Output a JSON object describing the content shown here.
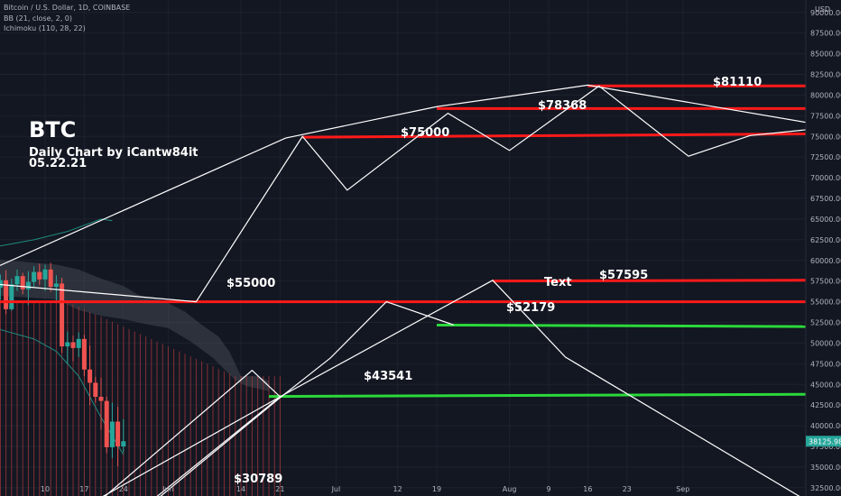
{
  "header": {
    "symbol_line": "Bitcoin / U.S. Dollar, 1D, COINBASE",
    "bb_line": "BB (21, close, 2, 0)",
    "ichimoku_line": "Ichimoku (110, 28, 22)",
    "currency": "USD"
  },
  "annotation": {
    "title": "BTC",
    "subtitle": "Daily Chart by iCantw84it",
    "date": "05.22.21"
  },
  "colors": {
    "background": "#131722",
    "grid": "#1e222d",
    "resistance": "#ff1a1a",
    "support": "#2bd93b",
    "drawing": "#ffffff",
    "candle_up": "#26a69a",
    "candle_down": "#ef5350",
    "price_tag": "#26a69a"
  },
  "chart_data": {
    "type": "line",
    "title": "Bitcoin / U.S. Dollar, 1D, COINBASE",
    "y_axis": {
      "ticks": [
        90000,
        87500,
        85000,
        82500,
        80000,
        77500,
        75000,
        72500,
        70000,
        67500,
        65000,
        62500,
        60000,
        57500,
        55000,
        52500,
        50000,
        47500,
        45000,
        42500,
        40000,
        37500,
        35000,
        32500
      ],
      "tick_labels": [
        "90000.00",
        "87500.00",
        "85000.00",
        "82500.00",
        "80000.00",
        "77500.00",
        "75000.00",
        "72500.00",
        "70000.00",
        "67500.00",
        "65000.00",
        "62500.00",
        "60000.00",
        "57500.00",
        "55000.00",
        "52500.00",
        "50000.00",
        "47500.00",
        "45000.00",
        "42500.00",
        "40000.00",
        "37500.00",
        "35000.00",
        "32500.00"
      ],
      "ylim": [
        31500,
        91500
      ]
    },
    "x_axis": {
      "tick_labels": [
        "10",
        "17",
        "24",
        "Jun",
        "14",
        "21",
        "Jul",
        "12",
        "19",
        "Aug",
        "9",
        "16",
        "23",
        "Sep"
      ],
      "tick_days": [
        0,
        7,
        14,
        22,
        35,
        42,
        52,
        63,
        70,
        83,
        90,
        97,
        104,
        114
      ],
      "xlim": [
        -10,
        140
      ]
    },
    "last_price": {
      "value": 38125.98,
      "label": "38125.98"
    },
    "candles": [
      {
        "d": -9,
        "o": 55000,
        "h": 57000,
        "l": 53800,
        "c": 56700
      },
      {
        "d": -8,
        "o": 56700,
        "h": 58300,
        "l": 55200,
        "c": 57600
      },
      {
        "d": -7,
        "o": 57600,
        "h": 58800,
        "l": 53500,
        "c": 54100
      },
      {
        "d": -6,
        "o": 54100,
        "h": 57800,
        "l": 53900,
        "c": 57100
      },
      {
        "d": -5,
        "o": 57100,
        "h": 58900,
        "l": 56300,
        "c": 58100
      },
      {
        "d": -4,
        "o": 58100,
        "h": 58500,
        "l": 55900,
        "c": 56500
      },
      {
        "d": -3,
        "o": 56500,
        "h": 58700,
        "l": 54600,
        "c": 57400
      },
      {
        "d": -2,
        "o": 57400,
        "h": 59300,
        "l": 56800,
        "c": 58600
      },
      {
        "d": -1,
        "o": 58600,
        "h": 59600,
        "l": 57000,
        "c": 57700
      },
      {
        "d": 0,
        "o": 57700,
        "h": 59500,
        "l": 56300,
        "c": 58900
      },
      {
        "d": 1,
        "o": 58900,
        "h": 59700,
        "l": 56200,
        "c": 56800
      },
      {
        "d": 2,
        "o": 56800,
        "h": 58200,
        "l": 55100,
        "c": 57200
      },
      {
        "d": 3,
        "o": 57200,
        "h": 57900,
        "l": 48800,
        "c": 49600
      },
      {
        "d": 4,
        "o": 49600,
        "h": 51400,
        "l": 47500,
        "c": 50100
      },
      {
        "d": 5,
        "o": 50100,
        "h": 50900,
        "l": 47800,
        "c": 49400
      },
      {
        "d": 6,
        "o": 49400,
        "h": 51300,
        "l": 48300,
        "c": 50500
      },
      {
        "d": 7,
        "o": 50500,
        "h": 51000,
        "l": 46000,
        "c": 46800
      },
      {
        "d": 8,
        "o": 46800,
        "h": 49700,
        "l": 42500,
        "c": 45200
      },
      {
        "d": 9,
        "o": 45200,
        "h": 45900,
        "l": 42800,
        "c": 43500
      },
      {
        "d": 10,
        "o": 43500,
        "h": 45800,
        "l": 39500,
        "c": 43000
      },
      {
        "d": 11,
        "o": 43000,
        "h": 43500,
        "l": 36700,
        "c": 37400
      },
      {
        "d": 12,
        "o": 37400,
        "h": 42800,
        "l": 36100,
        "c": 40500
      },
      {
        "d": 13,
        "o": 40500,
        "h": 42300,
        "l": 35100,
        "c": 37500
      },
      {
        "d": 14,
        "o": 37500,
        "h": 40800,
        "l": 36800,
        "c": 38125.98
      }
    ],
    "horizontal_levels": [
      {
        "label": "$81110",
        "kind": "resistance",
        "y_start": 81110,
        "y_end": 81110,
        "d_start": 97,
        "d_end": 140
      },
      {
        "label": "$78368",
        "kind": "resistance",
        "y_start": 78368,
        "y_end": 78368,
        "d_start": 70,
        "d_end": 140
      },
      {
        "label": "$75000",
        "kind": "resistance",
        "y_start": 74900,
        "y_end": 75300,
        "d_start": 46,
        "d_end": 140
      },
      {
        "label": "$57595",
        "kind": "resistance",
        "y_start": 57500,
        "y_end": 57600,
        "d_start": 80,
        "d_end": 140
      },
      {
        "label": "$55000",
        "kind": "resistance",
        "y_start": 55000,
        "y_end": 55000,
        "d_start": -10,
        "d_end": 140
      },
      {
        "label": "$52179",
        "kind": "support",
        "y_start": 52179,
        "y_end": 52000,
        "d_start": 70,
        "d_end": 140
      },
      {
        "label": "$43541",
        "kind": "support",
        "y_start": 43541,
        "y_end": 43800,
        "d_start": 40,
        "d_end": 140
      }
    ],
    "annotations": [
      {
        "text": "$30789",
        "d": 30,
        "y": 31000
      },
      {
        "text": "Text",
        "d": 83,
        "y": 56200
      }
    ],
    "drawings": [
      {
        "name": "upper-channel-top",
        "points": [
          [
            -10,
            58800
          ],
          [
            43,
            74800
          ],
          [
            70,
            78600
          ],
          [
            97,
            81200
          ],
          [
            137,
            76700
          ]
        ]
      },
      {
        "name": "upper-zigzag",
        "points": [
          [
            -10,
            57200
          ],
          [
            27,
            55000
          ],
          [
            46,
            75000
          ],
          [
            54,
            68500
          ],
          [
            72,
            77800
          ],
          [
            83,
            73300
          ],
          [
            99,
            81100
          ],
          [
            115,
            72600
          ],
          [
            126,
            75100
          ],
          [
            140,
            75800
          ]
        ]
      },
      {
        "name": "mid-rising-1",
        "points": [
          [
            18,
            30000
          ],
          [
            42,
            43400
          ],
          [
            51,
            48200
          ],
          [
            61,
            55000
          ],
          [
            73,
            52200
          ]
        ]
      },
      {
        "name": "mid-rising-2",
        "points": [
          [
            17,
            29800
          ],
          [
            42,
            43500
          ],
          [
            80,
            57595
          ],
          [
            93,
            48300
          ],
          [
            138,
            31000
          ]
        ]
      },
      {
        "name": "lower-triangle",
        "points": [
          [
            8,
            29900
          ],
          [
            37,
            46700
          ],
          [
            42,
            43500
          ],
          [
            6,
            29800
          ]
        ]
      }
    ]
  }
}
